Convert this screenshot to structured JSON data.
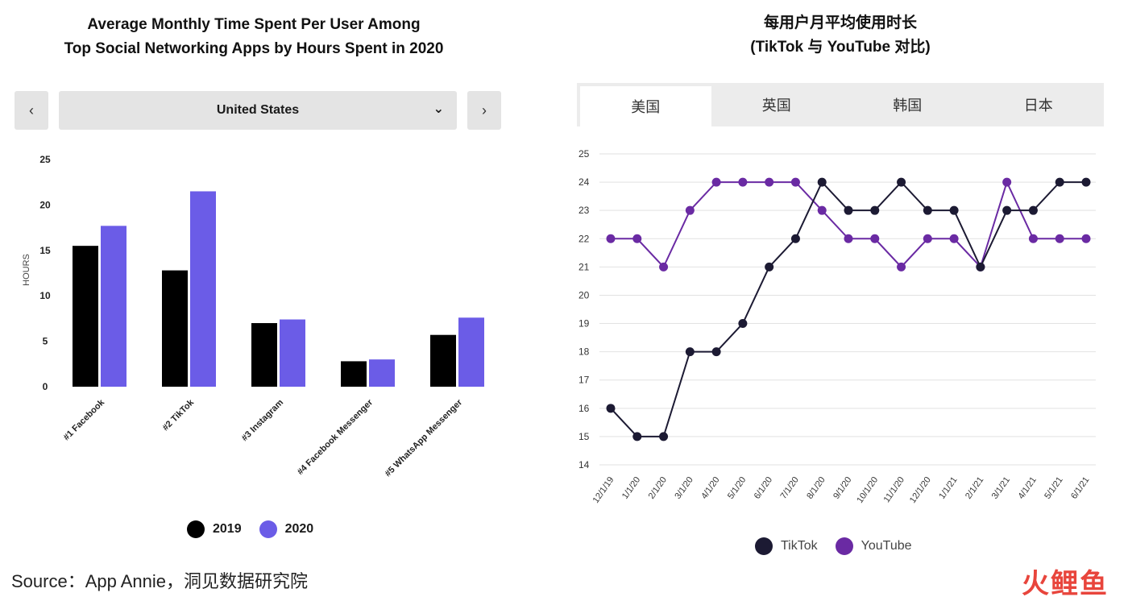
{
  "left_panel": {
    "title_line1": "Average Monthly Time Spent Per User Among",
    "title_line2": "Top Social Networking Apps by Hours Spent in 2020",
    "prev_label": "‹",
    "next_label": "›",
    "country_select": "United States",
    "chevron_icon": "chevron-down-icon",
    "legend": [
      "2019",
      "2020"
    ]
  },
  "right_panel": {
    "title_line1": "每用户月平均使用时长",
    "title_line2": "(TikTok 与 YouTube 对比)",
    "tabs": [
      "美国",
      "英国",
      "韩国",
      "日本"
    ],
    "active_tab": 0,
    "legend": [
      "TikTok",
      "YouTube"
    ]
  },
  "source": "Source：App Annie，洞见数据研究院",
  "brand": "火鲤鱼",
  "colors": {
    "bar_2019": "#000000",
    "bar_2020": "#6b5ce7",
    "tiktok": "#1c1a33",
    "youtube": "#6a2aa3"
  },
  "chart_data": [
    {
      "type": "bar",
      "title": "Average Monthly Time Spent Per User Among Top Social Networking Apps by Hours Spent in 2020",
      "categories": [
        "#1 Facebook",
        "#2 TikTok",
        "#3 Instagram",
        "#4 Facebook Messenger",
        "#5 WhatsApp Messenger"
      ],
      "series": [
        {
          "name": "2019",
          "values": [
            15.5,
            12.8,
            7.0,
            2.8,
            5.7
          ]
        },
        {
          "name": "2020",
          "values": [
            17.7,
            21.5,
            7.4,
            3.0,
            7.6
          ]
        }
      ],
      "xlabel": "",
      "ylabel": "HOURS",
      "yticks": [
        0,
        5,
        10,
        15,
        20,
        25
      ],
      "ylim": [
        0,
        25
      ],
      "grid": false,
      "legend": "bottom"
    },
    {
      "type": "line",
      "title": "每用户月平均使用时长 (TikTok 与 YouTube 对比)",
      "categories": [
        "12/1/19",
        "1/1/20",
        "2/1/20",
        "3/1/20",
        "4/1/20",
        "5/1/20",
        "6/1/20",
        "7/1/20",
        "8/1/20",
        "9/1/20",
        "10/1/20",
        "11/1/20",
        "12/1/20",
        "1/1/21",
        "2/1/21",
        "3/1/21",
        "4/1/21",
        "5/1/21",
        "6/1/21"
      ],
      "series": [
        {
          "name": "TikTok",
          "values": [
            16,
            15,
            15,
            18,
            18,
            19,
            21,
            22,
            24,
            23,
            23,
            24,
            23,
            23,
            21,
            23,
            23,
            24,
            24
          ]
        },
        {
          "name": "YouTube",
          "values": [
            22,
            22,
            21,
            23,
            24,
            24,
            24,
            24,
            23,
            22,
            22,
            21,
            22,
            22,
            21,
            24,
            22,
            22,
            22
          ]
        }
      ],
      "yticks": [
        14,
        15,
        16,
        17,
        18,
        19,
        20,
        21,
        22,
        23,
        24,
        25
      ],
      "ylim": [
        14,
        25
      ],
      "grid": true,
      "legend": "bottom"
    }
  ]
}
